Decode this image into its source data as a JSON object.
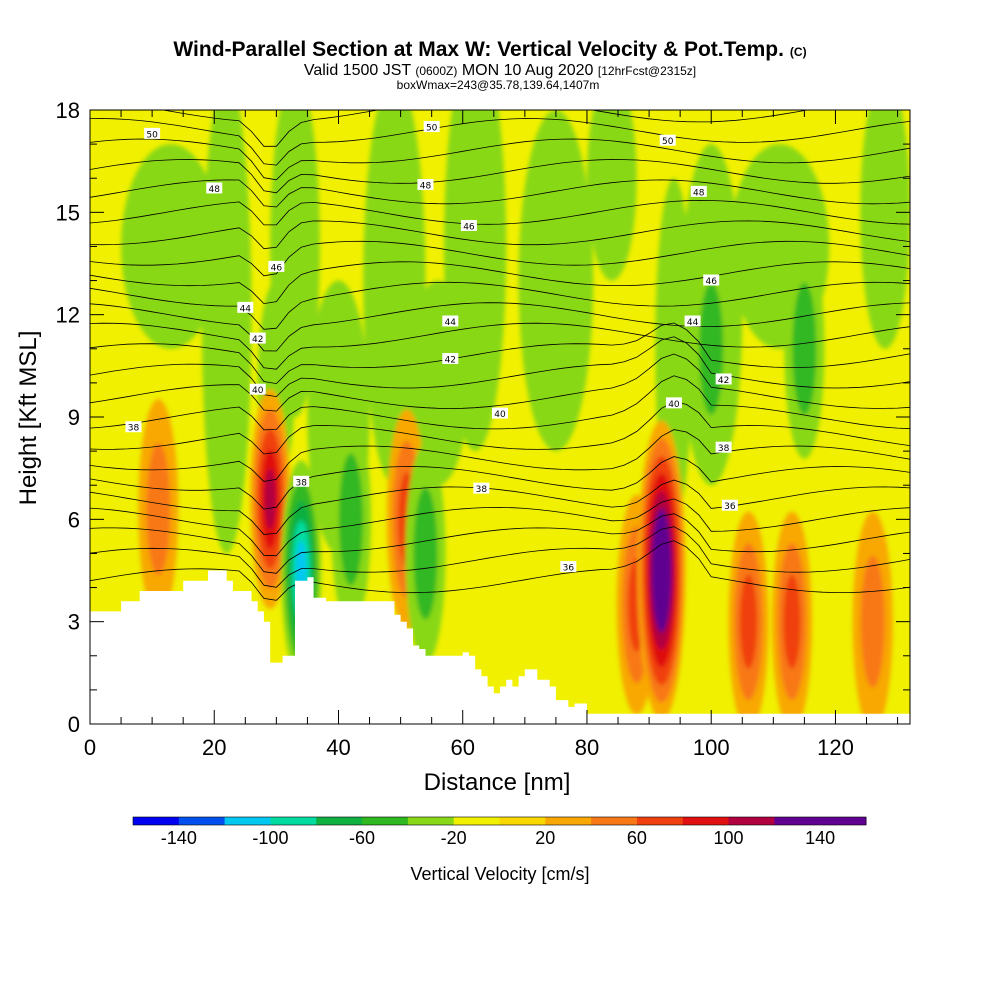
{
  "chart_data": {
    "type": "heatmap",
    "title": "Wind-Parallel Section at Max W: Vertical Velocity & Pot.Temp.",
    "title_mark": "(C)",
    "subtitle_parts": [
      "Valid 1500 JST",
      "(0600Z)",
      "MON 10 Aug 2020",
      "[12hrFcst@2315z]"
    ],
    "subtitle2": "boxWmax=243@35.78,139.64,1407m",
    "xlabel": "Distance [nm]",
    "ylabel": "Height [Kft MSL]",
    "xlim": [
      0,
      132
    ],
    "ylim": [
      0,
      18
    ],
    "x_ticks": [
      "0",
      "20",
      "40",
      "60",
      "80",
      "100",
      "120"
    ],
    "y_ticks": [
      "0",
      "3",
      "6",
      "9",
      "12",
      "15",
      "18"
    ],
    "colorbar": {
      "label": "Vertical Velocity [cm/s]",
      "tick_labels": [
        "-140",
        "-100",
        "-60",
        "-20",
        "20",
        "60",
        "100",
        "140"
      ],
      "levels": [
        -160,
        -140,
        -120,
        -100,
        -80,
        -60,
        -40,
        -20,
        0,
        20,
        40,
        60,
        80,
        100,
        120,
        140,
        160
      ],
      "colors": [
        "#0000f0",
        "#0050f0",
        "#00c8f0",
        "#00dca0",
        "#10b040",
        "#30b820",
        "#88d818",
        "#f0f000",
        "#f8d800",
        "#f8a800",
        "#f87818",
        "#f04010",
        "#e01010",
        "#b00040",
        "#600090",
        "#600090"
      ]
    },
    "terrain_profile": {
      "x": [
        0,
        4,
        5,
        7,
        8,
        12,
        15,
        19,
        22,
        23,
        26,
        27,
        28,
        29,
        31,
        33,
        35,
        36,
        38,
        45,
        49,
        50,
        51,
        52,
        53,
        54,
        56,
        58,
        60,
        61,
        62,
        63,
        64,
        65,
        66,
        67,
        68,
        69,
        70,
        72,
        74,
        75,
        77,
        78,
        80
      ],
      "top": [
        3.3,
        3.3,
        3.6,
        3.6,
        3.9,
        3.9,
        4.2,
        4.5,
        4.2,
        3.9,
        3.6,
        3.3,
        3.0,
        1.8,
        2.0,
        4.2,
        4.3,
        3.7,
        3.6,
        3.6,
        3.2,
        3.0,
        2.8,
        2.3,
        2.2,
        2.0,
        2.0,
        2.0,
        2.1,
        2.0,
        1.6,
        1.4,
        1.1,
        0.9,
        1.1,
        1.3,
        1.1,
        1.4,
        1.6,
        1.3,
        1.1,
        0.7,
        0.5,
        0.6,
        0.3
      ]
    },
    "wmax": {
      "value": 243,
      "lat": 35.78,
      "lon": 139.64,
      "height_m": 1407
    },
    "theta_contours": {
      "levels_labeled": [
        36,
        38,
        40,
        42,
        44,
        46,
        48,
        50
      ],
      "labels": [
        {
          "text": "50",
          "x": 10,
          "y": 17.3
        },
        {
          "text": "50",
          "x": 55,
          "y": 17.5
        },
        {
          "text": "50",
          "x": 93,
          "y": 17.1
        },
        {
          "text": "48",
          "x": 20,
          "y": 15.7
        },
        {
          "text": "48",
          "x": 54,
          "y": 15.8
        },
        {
          "text": "48",
          "x": 98,
          "y": 15.6
        },
        {
          "text": "46",
          "x": 61,
          "y": 14.6
        },
        {
          "text": "46",
          "x": 30,
          "y": 13.4
        },
        {
          "text": "46",
          "x": 100,
          "y": 13.0
        },
        {
          "text": "44",
          "x": 25,
          "y": 12.2
        },
        {
          "text": "44",
          "x": 58,
          "y": 11.8
        },
        {
          "text": "44",
          "x": 97,
          "y": 11.8
        },
        {
          "text": "42",
          "x": 27,
          "y": 11.3
        },
        {
          "text": "42",
          "x": 58,
          "y": 10.7
        },
        {
          "text": "42",
          "x": 102,
          "y": 10.1
        },
        {
          "text": "40",
          "x": 27,
          "y": 9.8
        },
        {
          "text": "40",
          "x": 66,
          "y": 9.1
        },
        {
          "text": "40",
          "x": 94,
          "y": 9.4
        },
        {
          "text": "38",
          "x": 7,
          "y": 8.7
        },
        {
          "text": "38",
          "x": 34,
          "y": 7.1
        },
        {
          "text": "38",
          "x": 63,
          "y": 6.9
        },
        {
          "text": "38",
          "x": 102,
          "y": 8.1
        },
        {
          "text": "36",
          "x": 103,
          "y": 6.4
        },
        {
          "text": "36",
          "x": 77,
          "y": 4.6
        }
      ]
    },
    "features": [
      {
        "kind": "updraft",
        "x": 11,
        "y": 6.3,
        "peak_cm_s": 40
      },
      {
        "kind": "updraft",
        "x": 29,
        "y": 6.6,
        "peak_cm_s": 110
      },
      {
        "kind": "downdraft",
        "x": 34,
        "y": 4.5,
        "peak_cm_s": -100
      },
      {
        "kind": "downdraft",
        "x": 42,
        "y": 6.0,
        "peak_cm_s": -40
      },
      {
        "kind": "updraft",
        "x": 51,
        "y": 6.0,
        "peak_cm_s": 70
      },
      {
        "kind": "downdraft",
        "x": 54,
        "y": 5.0,
        "peak_cm_s": -40
      },
      {
        "kind": "updraft",
        "x": 88,
        "y": 3.5,
        "peak_cm_s": 60
      },
      {
        "kind": "updraft",
        "x": 92,
        "y": 4.5,
        "peak_cm_s": 243
      },
      {
        "kind": "updraft",
        "x": 106,
        "y": 3.0,
        "peak_cm_s": 60
      },
      {
        "kind": "updraft",
        "x": 113,
        "y": 3.0,
        "peak_cm_s": 60
      },
      {
        "kind": "updraft",
        "x": 126,
        "y": 3.0,
        "peak_cm_s": 40
      },
      {
        "kind": "downdraft",
        "x": 100,
        "y": 11.0,
        "peak_cm_s": -40
      },
      {
        "kind": "downdraft",
        "x": 115,
        "y": 11.0,
        "peak_cm_s": -40
      }
    ]
  }
}
